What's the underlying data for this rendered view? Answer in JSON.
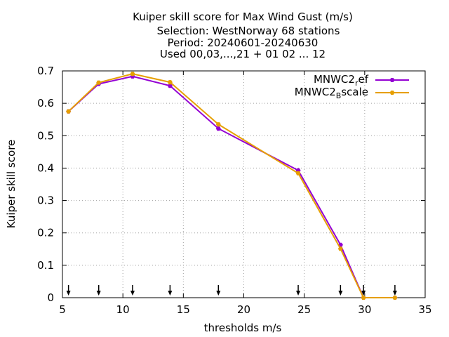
{
  "chart_data": {
    "type": "line",
    "title_lines": [
      "Kuiper skill score  for Max Wind Gust (m/s)",
      "Selection: WestNorway     68 stations",
      "Period: 20240601-20240630",
      "Used 00,03,...,21 + 01 02 ... 12"
    ],
    "xlabel": "thresholds m/s",
    "ylabel": "Kuiper skill score",
    "xlim": [
      5,
      35
    ],
    "ylim": [
      0,
      0.7
    ],
    "xticks": [
      5,
      10,
      15,
      20,
      25,
      30,
      35
    ],
    "yticks": [
      0,
      0.1,
      0.2,
      0.3,
      0.4,
      0.5,
      0.6,
      0.7
    ],
    "grid": true,
    "legend_position": "top-right",
    "x": [
      5.5,
      8,
      10.8,
      13.9,
      17.9,
      24.5,
      28,
      29.9,
      32.5
    ],
    "series": [
      {
        "name_main": "MNWC2",
        "name_sub": "r",
        "name_rest": "ef",
        "color": "#9400d3",
        "values": [
          0.575,
          0.66,
          0.683,
          0.654,
          0.522,
          0.393,
          0.163,
          0.0,
          0.0
        ]
      },
      {
        "name_main": "MNWC2",
        "name_sub": "B",
        "name_rest": "scale",
        "color": "#e69f00",
        "values": [
          0.575,
          0.664,
          0.691,
          0.665,
          0.535,
          0.384,
          0.151,
          0.0,
          0.0
        ]
      }
    ],
    "arrow_markers_x": [
      5.5,
      8,
      10.8,
      13.9,
      17.9,
      24.5,
      28,
      29.9,
      32.5
    ]
  }
}
